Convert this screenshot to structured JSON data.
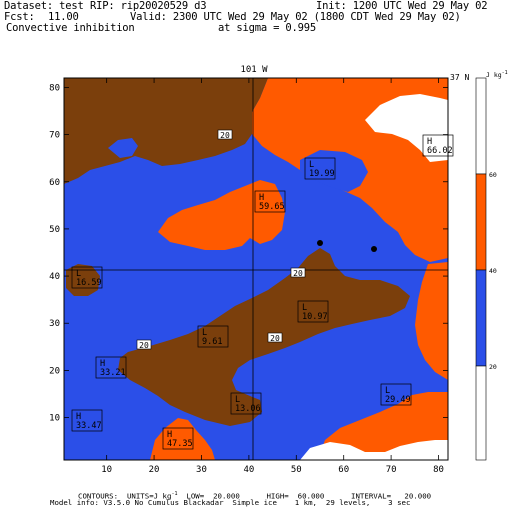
{
  "header": {
    "dataset": "Dataset: test",
    "rip": "RIP: rip20020529 d3",
    "init": "Init: 1200 UTC Wed 29 May 02",
    "fcst": "Fcst:",
    "fcst_value": "11.00",
    "valid": "Valid: 2300 UTC Wed 29 May 02 (1800 CDT Wed 29 May 02)",
    "field": "Convective inhibition",
    "level": "at sigma = 0.995"
  },
  "map": {
    "top_label": "101 W",
    "right_label": "37 N",
    "x_ticks": [
      "10",
      "20",
      "30",
      "40",
      "50",
      "60",
      "70",
      "80"
    ],
    "y_ticks": [
      "10",
      "20",
      "30",
      "40",
      "50",
      "60",
      "70",
      "80"
    ],
    "colors": {
      "white": "#ffffff",
      "blue": "#2b4fe8",
      "brown": "#7b3f0c",
      "orange": "#ff5a00"
    },
    "contour_labels": [
      "20",
      "20",
      "20",
      "20"
    ],
    "extrema": [
      {
        "type": "H",
        "value": "59.65"
      },
      {
        "type": "H",
        "value": "66.02"
      },
      {
        "type": "H",
        "value": "33.21"
      },
      {
        "type": "H",
        "value": "33.47"
      },
      {
        "type": "H",
        "value": "47.35"
      },
      {
        "type": "L",
        "value": "19.99"
      },
      {
        "type": "L",
        "value": "16.59"
      },
      {
        "type": "L",
        "value": "10.97"
      },
      {
        "type": "L",
        "value": "9.61"
      },
      {
        "type": "L",
        "value": "13.06"
      },
      {
        "type": "L",
        "value": "29.49"
      }
    ]
  },
  "colorbar": {
    "unit": "J kg",
    "unit_exp": "-1",
    "labels": [
      "60",
      "40",
      "20"
    ]
  },
  "footer": {
    "line1": "CONTOURS:  UNITS=J kg",
    "line1_exp": "-1",
    "line1_rest": "  LOW=  20.000      HIGH=  60.000      INTERVAL=   20.000",
    "line2": "Model info: V3.5.0 No Cumulus Blackadar  Simple ice    1 km,  29 levels,    3 sec"
  }
}
